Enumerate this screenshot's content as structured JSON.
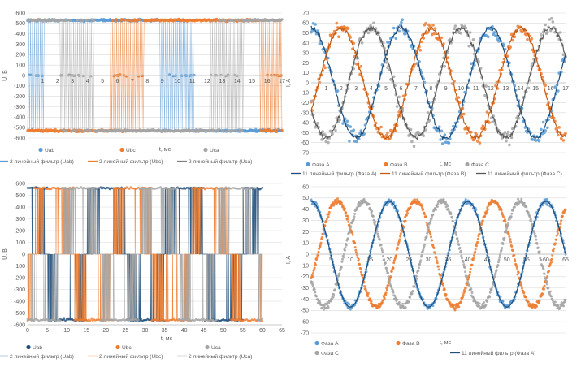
{
  "chart_data": [
    {
      "type": "line",
      "x_unit_label": "t, мс",
      "ylabel": "U, В",
      "xlim": [
        0,
        17
      ],
      "ylim": [
        -600,
        600
      ],
      "xticks": [
        "1",
        "2",
        "3",
        "4",
        "5",
        "6",
        "7",
        "8",
        "9",
        "10",
        "11",
        "12",
        "13",
        "14",
        "15",
        "16",
        "17"
      ],
      "yticks": [
        "600",
        "500",
        "400",
        "300",
        "200",
        "100",
        "0",
        "-100",
        "-200",
        "-300",
        "-400",
        "-500",
        "-600"
      ],
      "grid": true,
      "legend_position": "bottom",
      "series": [
        {
          "name": "Uab",
          "kind": "scatter",
          "color": "#5b9bd5",
          "shape": "square-wave",
          "amplitude": 530,
          "period": 20,
          "phase_deg": 0,
          "pwm": true
        },
        {
          "name": "Ubc",
          "kind": "scatter",
          "color": "#ed7d31",
          "shape": "square-wave",
          "amplitude": 530,
          "period": 20,
          "phase_deg": -120,
          "pwm": true
        },
        {
          "name": "Uca",
          "kind": "scatter",
          "color": "#a5a5a5",
          "shape": "square-wave",
          "amplitude": 530,
          "period": 20,
          "phase_deg": 120,
          "pwm": true
        },
        {
          "name": "2 линейный фильтр (Uab)",
          "kind": "line",
          "color": "#5b9bd5"
        },
        {
          "name": "2 линейный фильтр (Ubc)",
          "kind": "line",
          "color": "#ed7d31"
        },
        {
          "name": "2 линейный фильтр (Uca)",
          "kind": "line",
          "color": "#7f7f7f"
        }
      ]
    },
    {
      "type": "line",
      "x_unit_label": "t, мс",
      "ylabel": "I, A",
      "xlim": [
        0,
        17
      ],
      "ylim": [
        -70,
        70
      ],
      "xticks": [
        "1",
        "2",
        "3",
        "4",
        "5",
        "6",
        "7",
        "8",
        "9",
        "10",
        "11",
        "12",
        "13",
        "14",
        "15",
        "16",
        "17"
      ],
      "yticks": [
        "70",
        "60",
        "50",
        "40",
        "30",
        "20",
        "10",
        "0",
        "-10",
        "-20",
        "-30",
        "-40",
        "-50",
        "-60",
        "-70"
      ],
      "grid": true,
      "legend_position": "bottom",
      "series": [
        {
          "name": "Фаза A",
          "kind": "scatter",
          "color": "#5b9bd5",
          "shape": "sine",
          "amplitude": 55,
          "period": 6,
          "phase_deg": 90,
          "noise": 9
        },
        {
          "name": "Фаза B",
          "kind": "scatter",
          "color": "#ed7d31",
          "shape": "sine",
          "amplitude": 55,
          "period": 6,
          "phase_deg": -30,
          "noise": 9
        },
        {
          "name": "Фаза C",
          "kind": "scatter",
          "color": "#a5a5a5",
          "shape": "sine",
          "amplitude": 55,
          "period": 6,
          "phase_deg": 210,
          "noise": 9
        },
        {
          "name": "11 линейный фильтр (Фаза A)",
          "kind": "line",
          "color": "#1f4e79"
        },
        {
          "name": "11 линейный фильтр (Фаза B)",
          "kind": "line",
          "color": "#c55a11"
        },
        {
          "name": "11 линейный фильтр (Фаза C)",
          "kind": "line",
          "color": "#595959"
        }
      ]
    },
    {
      "type": "line",
      "x_unit_label": "t, мс",
      "ylabel": "U, В",
      "xlim": [
        0,
        65
      ],
      "ylim": [
        -600,
        600
      ],
      "xticks": [
        "0",
        "5",
        "10",
        "15",
        "20",
        "25",
        "30",
        "35",
        "40",
        "45",
        "50",
        "55",
        "60",
        "65"
      ],
      "yticks": [
        "600",
        "500",
        "400",
        "300",
        "200",
        "100",
        "0",
        "-100",
        "-200",
        "-300",
        "-400",
        "-500",
        "-600"
      ],
      "grid": true,
      "legend_position": "bottom",
      "series": [
        {
          "name": "Uab",
          "kind": "scatter",
          "color": "#1f4e79",
          "shape": "pwm-band",
          "amplitude": 560,
          "period": 20,
          "phase_deg": 90
        },
        {
          "name": "Ubc",
          "kind": "scatter",
          "color": "#ed7d31",
          "shape": "pwm-band",
          "amplitude": 560,
          "period": 20,
          "phase_deg": -30
        },
        {
          "name": "Uca",
          "kind": "scatter",
          "color": "#a5a5a5",
          "shape": "pwm-band",
          "amplitude": 560,
          "period": 20,
          "phase_deg": 210
        },
        {
          "name": "2 линейный фильтр (Uab)",
          "kind": "line",
          "color": "#1f4e79"
        },
        {
          "name": "2 линейный фильтр (Ubc)",
          "kind": "line",
          "color": "#ed7d31"
        },
        {
          "name": "2 линейный фильтр (Uca)",
          "kind": "line",
          "color": "#7f7f7f"
        }
      ]
    },
    {
      "type": "line",
      "x_unit_label": "t, мс",
      "ylabel": "I, A",
      "xlim": [
        0,
        65
      ],
      "ylim": [
        -70,
        60
      ],
      "xticks": [
        "5",
        "10",
        "15",
        "20",
        "25",
        "30",
        "35",
        "40",
        "45",
        "50",
        "55",
        "60",
        "65"
      ],
      "yticks": [
        "60",
        "50",
        "40",
        "30",
        "20",
        "10",
        "0",
        "-10",
        "-20",
        "-30",
        "-40",
        "-50",
        "-60",
        "-70"
      ],
      "grid": true,
      "legend_position": "bottom",
      "series": [
        {
          "name": "Фаза A",
          "kind": "scatter",
          "color": "#5b9bd5",
          "shape": "sine",
          "amplitude": 47,
          "period": 20,
          "phase_deg": 90,
          "noise": 3
        },
        {
          "name": "Фаза B",
          "kind": "scatter",
          "color": "#ed7d31",
          "shape": "sine",
          "amplitude": 47,
          "period": 20,
          "phase_deg": -30,
          "noise": 3
        },
        {
          "name": "Фаза C",
          "kind": "scatter",
          "color": "#a5a5a5",
          "shape": "sine",
          "amplitude": 47,
          "period": 20,
          "phase_deg": 210,
          "noise": 3
        },
        {
          "name": "11 линейный фильтр (Фаза A)",
          "kind": "line",
          "color": "#1f4e79"
        }
      ]
    }
  ]
}
